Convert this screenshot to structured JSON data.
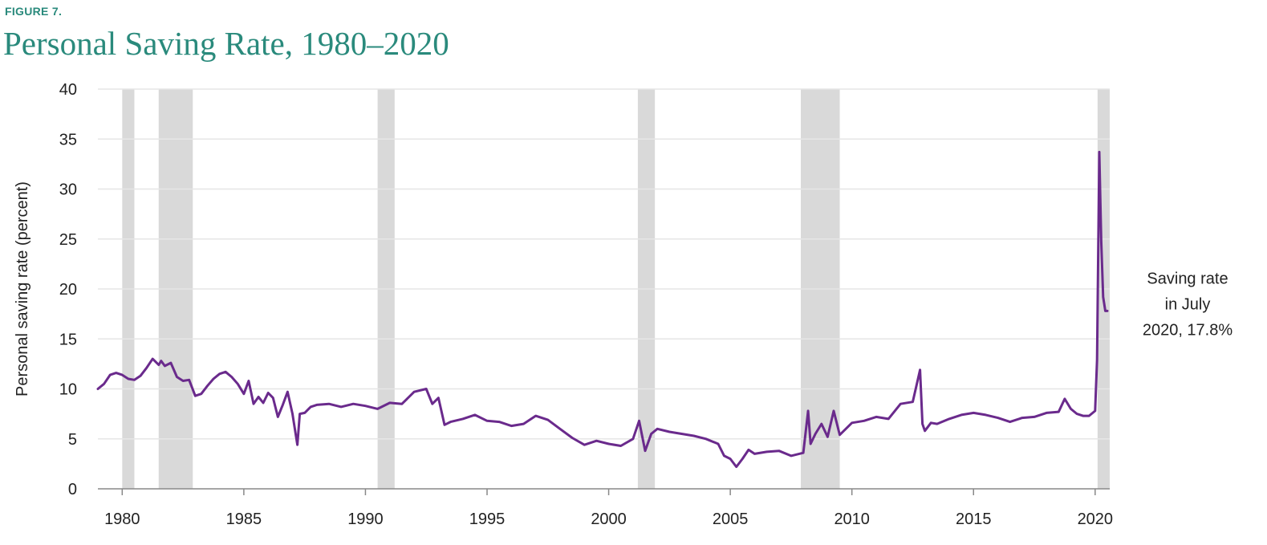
{
  "figure_label": "FIGURE 7.",
  "colors": {
    "accent": "#2a8a7c",
    "line": "#6a2a8c",
    "recession": "#d9d9d9",
    "grid": "#e6e6e6"
  },
  "chart_data": {
    "type": "line",
    "title": "Personal Saving Rate, 1980–2020",
    "xlabel": "",
    "ylabel": "Personal saving rate (percent)",
    "xlim": [
      1979.0,
      2020.6
    ],
    "ylim": [
      0,
      40
    ],
    "grid": true,
    "x_ticks": [
      1980,
      1985,
      1990,
      1995,
      2000,
      2005,
      2010,
      2015,
      2020
    ],
    "y_ticks": [
      0,
      5,
      10,
      15,
      20,
      25,
      30,
      35,
      40
    ],
    "recession_shading": [
      [
        1980.0,
        1980.5
      ],
      [
        1981.5,
        1982.9
      ],
      [
        1990.5,
        1991.2
      ],
      [
        2001.2,
        2001.9
      ],
      [
        2007.9,
        2009.5
      ],
      [
        2020.1,
        2020.6
      ]
    ],
    "series": [
      {
        "x": [
          1979.0,
          1979.25,
          1979.5,
          1979.75,
          1980.0,
          1980.25,
          1980.5,
          1980.75,
          1981.0,
          1981.25,
          1981.5,
          1981.6,
          1981.75,
          1982.0,
          1982.25,
          1982.5,
          1982.75,
          1983.0,
          1983.25,
          1983.5,
          1983.75,
          1984.0,
          1984.25,
          1984.5,
          1984.75,
          1985.0,
          1985.2,
          1985.4,
          1985.6,
          1985.8,
          1986.0,
          1986.2,
          1986.4,
          1986.6,
          1986.8,
          1987.0,
          1987.2,
          1987.3,
          1987.5,
          1987.75,
          1988.0,
          1988.5,
          1989.0,
          1989.5,
          1990.0,
          1990.5,
          1991.0,
          1991.5,
          1992.0,
          1992.5,
          1992.75,
          1993.0,
          1993.25,
          1993.5,
          1994.0,
          1994.5,
          1995.0,
          1995.5,
          1996.0,
          1996.5,
          1997.0,
          1997.5,
          1998.0,
          1998.5,
          1999.0,
          1999.5,
          2000.0,
          2000.5,
          2001.0,
          2001.25,
          2001.5,
          2001.75,
          2002.0,
          2002.5,
          2003.0,
          2003.5,
          2004.0,
          2004.5,
          2004.75,
          2005.0,
          2005.25,
          2005.5,
          2005.75,
          2006.0,
          2006.5,
          2007.0,
          2007.5,
          2008.0,
          2008.2,
          2008.3,
          2008.5,
          2008.75,
          2009.0,
          2009.25,
          2009.5,
          2009.75,
          2010.0,
          2010.5,
          2011.0,
          2011.5,
          2012.0,
          2012.5,
          2012.8,
          2012.9,
          2013.0,
          2013.25,
          2013.5,
          2014.0,
          2014.5,
          2015.0,
          2015.5,
          2016.0,
          2016.5,
          2017.0,
          2017.5,
          2018.0,
          2018.5,
          2018.75,
          2019.0,
          2019.25,
          2019.5,
          2019.75,
          2020.0,
          2020.08,
          2020.17,
          2020.25,
          2020.33,
          2020.42,
          2020.5
        ],
        "values": [
          10.0,
          10.5,
          11.4,
          11.6,
          11.4,
          11.0,
          10.9,
          11.3,
          12.1,
          13.0,
          12.4,
          12.8,
          12.3,
          12.6,
          11.2,
          10.8,
          10.9,
          9.3,
          9.5,
          10.3,
          11.0,
          11.5,
          11.7,
          11.2,
          10.5,
          9.5,
          10.8,
          8.5,
          9.2,
          8.6,
          9.6,
          9.1,
          7.2,
          8.4,
          9.7,
          7.5,
          4.4,
          7.5,
          7.6,
          8.2,
          8.4,
          8.5,
          8.2,
          8.5,
          8.3,
          8.0,
          8.6,
          8.5,
          9.7,
          10.0,
          8.5,
          9.1,
          6.4,
          6.7,
          7.0,
          7.4,
          6.8,
          6.7,
          6.3,
          6.5,
          7.3,
          6.9,
          6.0,
          5.1,
          4.4,
          4.8,
          4.5,
          4.3,
          5.0,
          6.8,
          3.8,
          5.5,
          6.0,
          5.7,
          5.5,
          5.3,
          5.0,
          4.5,
          3.3,
          3.0,
          2.2,
          3.0,
          3.9,
          3.5,
          3.7,
          3.8,
          3.3,
          3.6,
          7.8,
          4.5,
          5.5,
          6.5,
          5.2,
          7.8,
          5.4,
          6.0,
          6.6,
          6.8,
          7.2,
          7.0,
          8.5,
          8.7,
          11.9,
          6.5,
          5.8,
          6.6,
          6.5,
          7.0,
          7.4,
          7.6,
          7.4,
          7.1,
          6.7,
          7.1,
          7.2,
          7.6,
          7.7,
          9.0,
          8.0,
          7.5,
          7.3,
          7.3,
          7.8,
          12.9,
          33.7,
          24.8,
          19.2,
          17.8,
          17.8
        ]
      }
    ],
    "annotations": [
      {
        "x": 2020.5,
        "y": 17.8,
        "lines": [
          "Saving rate",
          "in July",
          "2020, 17.8%"
        ]
      }
    ]
  }
}
